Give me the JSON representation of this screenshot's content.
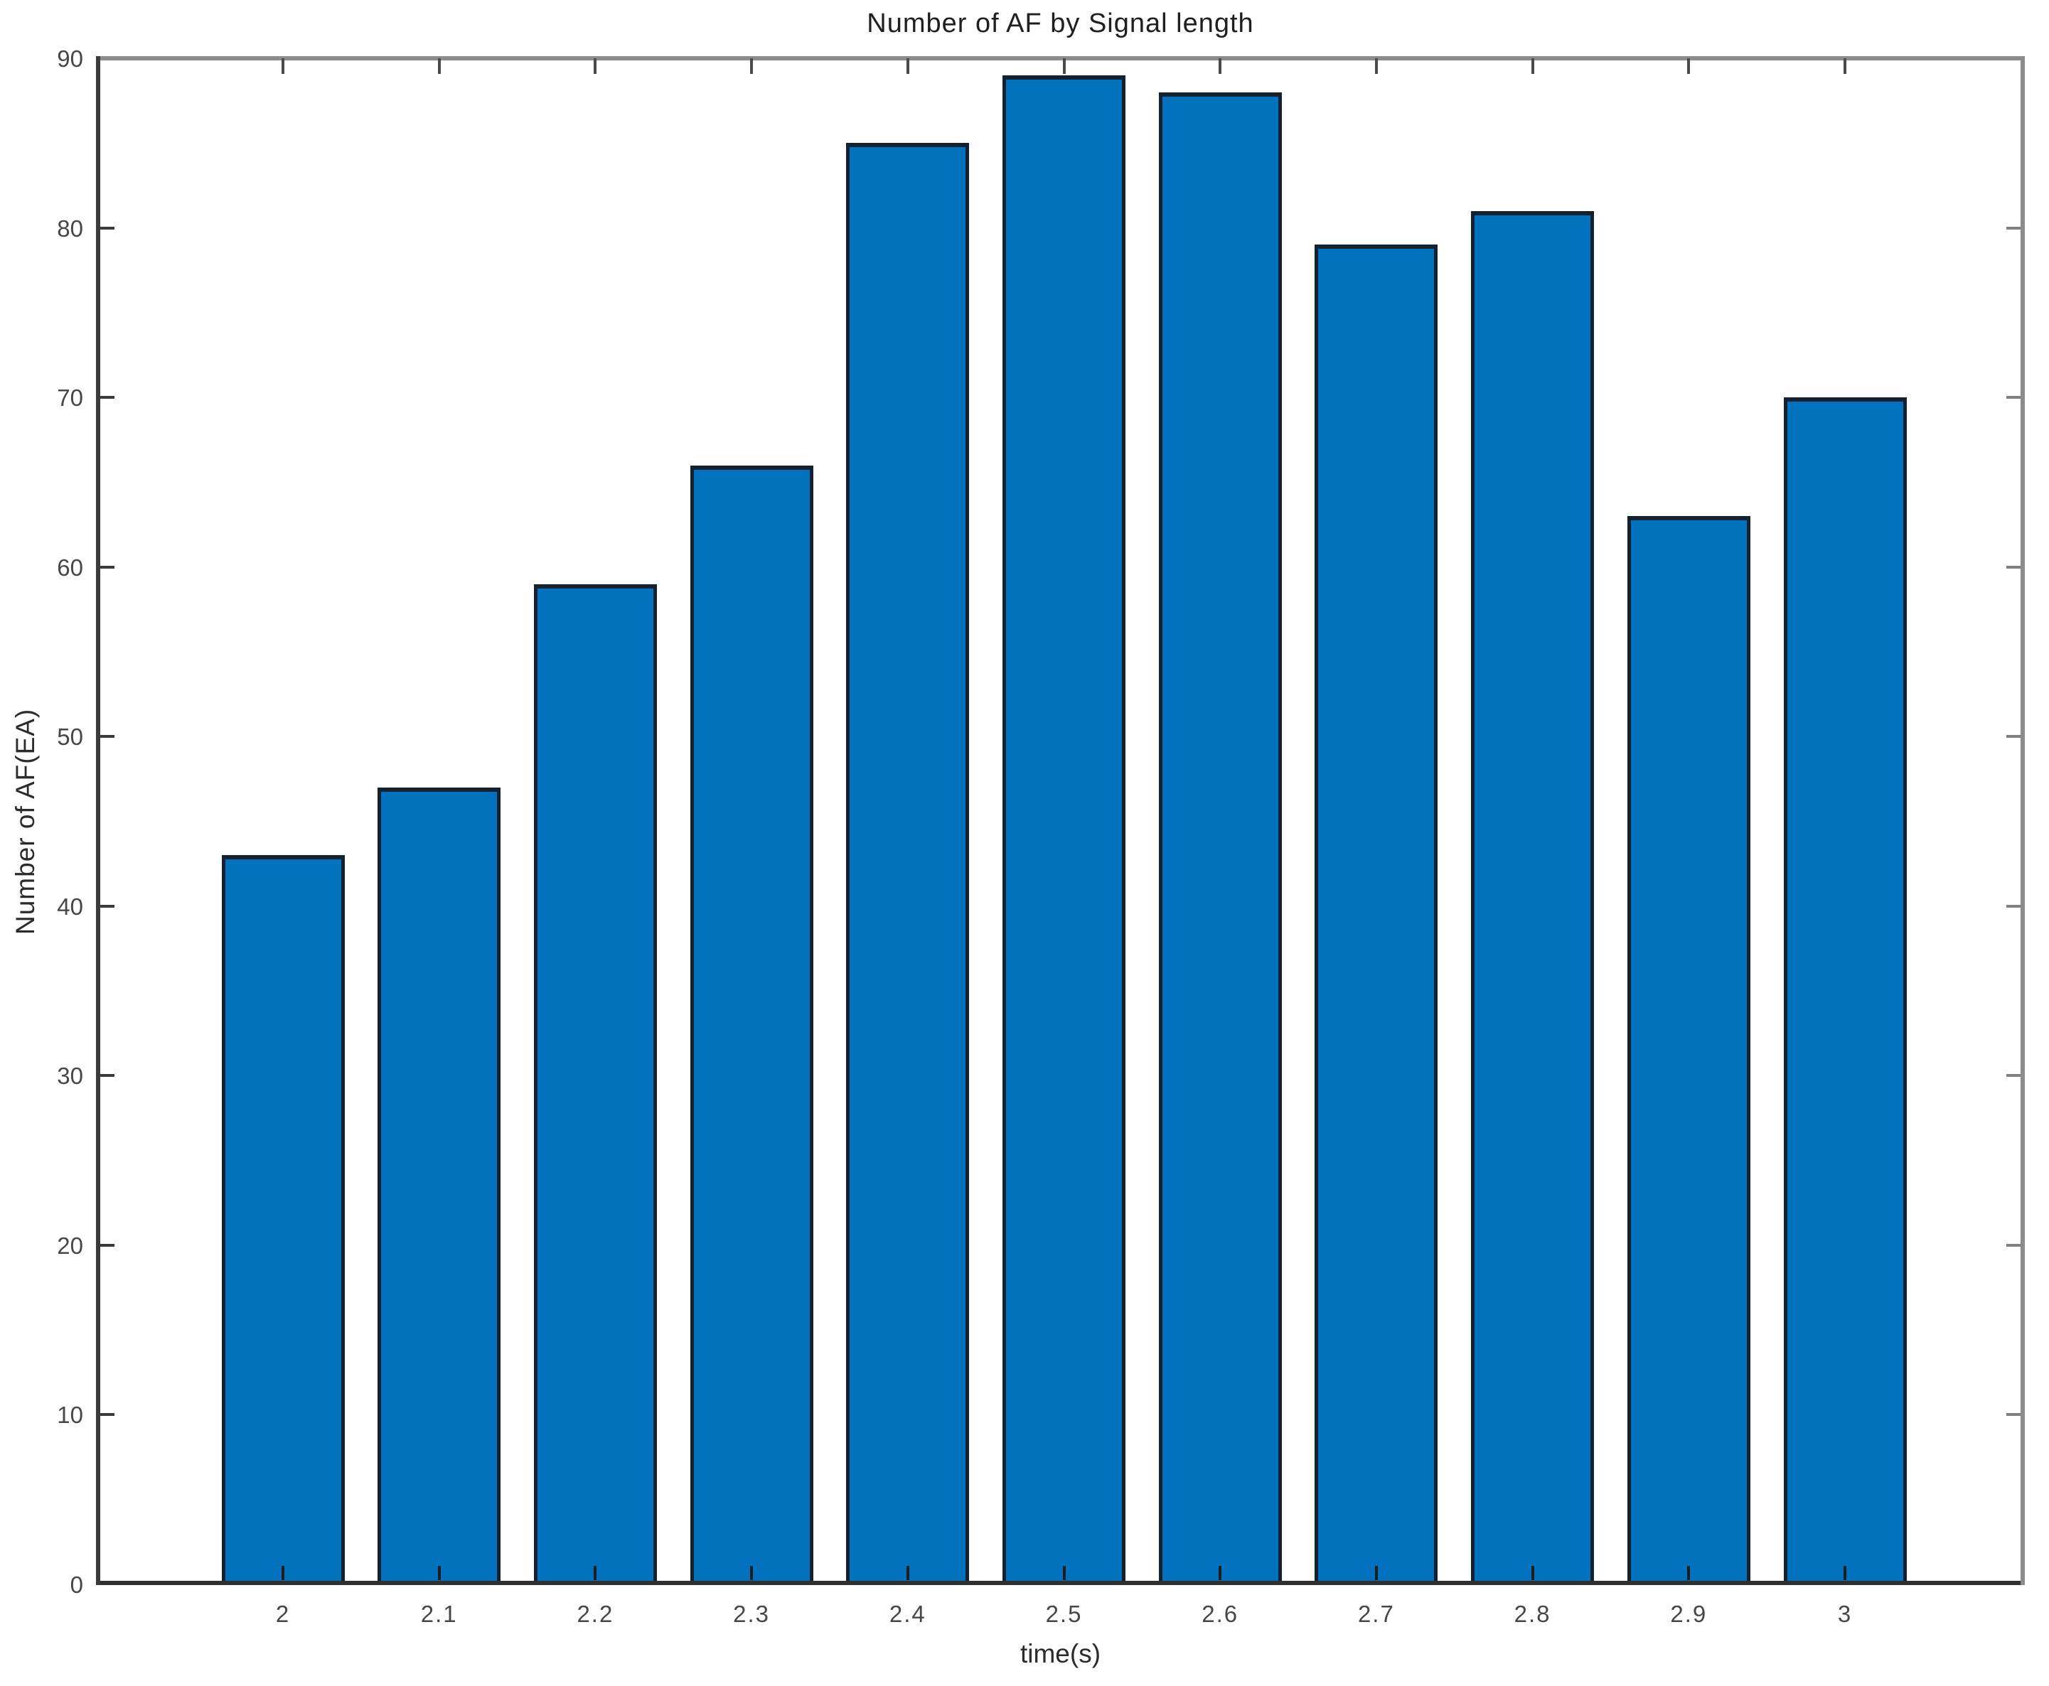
{
  "chart_data": {
    "type": "bar",
    "title": "Number of AF by Signal length",
    "xlabel": "time(s)",
    "ylabel": "Number of AF(EA)",
    "categories": [
      "2",
      "2.1",
      "2.2",
      "2.3",
      "2.4",
      "2.5",
      "2.6",
      "2.7",
      "2.8",
      "2.9",
      "3"
    ],
    "values": [
      43,
      47,
      59,
      66,
      85,
      89,
      88,
      79,
      81,
      63,
      70
    ],
    "y_ticks": [
      0,
      10,
      20,
      30,
      40,
      50,
      60,
      70,
      80,
      90
    ],
    "ylim": [
      0,
      90
    ],
    "grid": false,
    "legend": "none",
    "tick_direction": "in",
    "box": "on",
    "colors": {
      "bar_fill": "#0272bf",
      "bar_edge": "#14212e",
      "axis_dark": "#3a3a3a",
      "axis_light": "#8c8c8c",
      "tick_label": "#474747",
      "title_text": "#1f1f1f"
    }
  }
}
